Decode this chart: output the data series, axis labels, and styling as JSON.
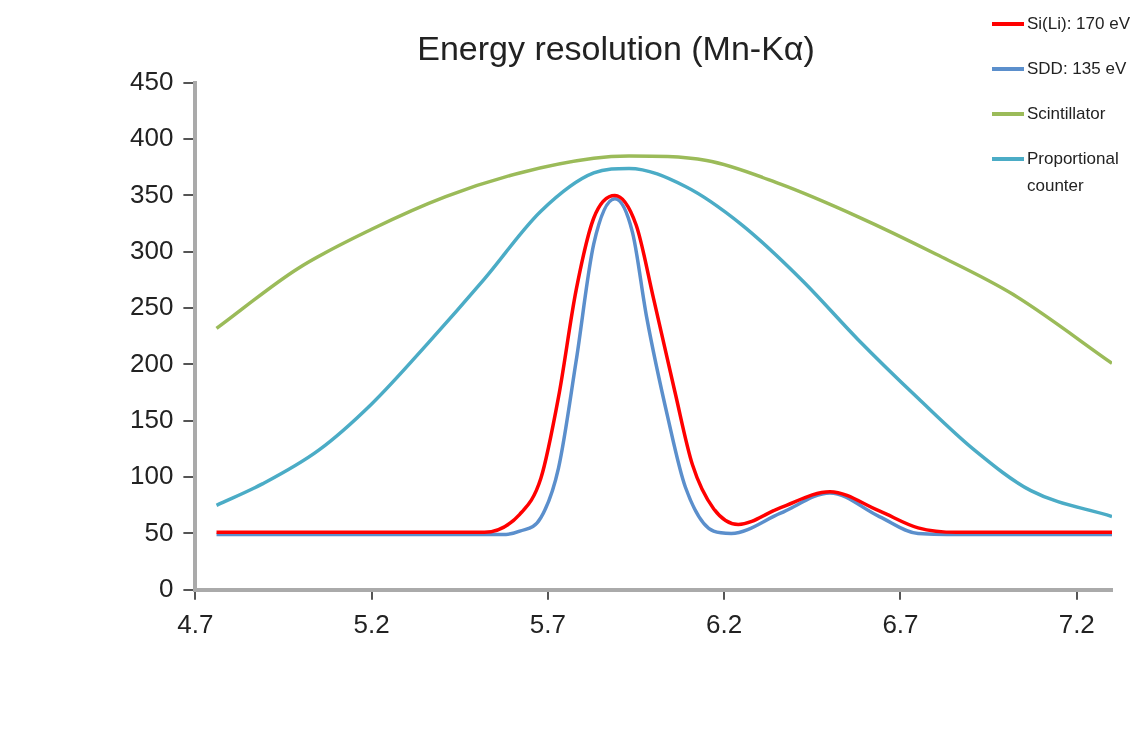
{
  "chart_data": {
    "type": "line",
    "title": "Energy resolution (Mn-Kα)",
    "xlim": [
      4.7,
      7.3
    ],
    "xticks": [
      4.7,
      5.2,
      5.7,
      6.2,
      6.7,
      7.2
    ],
    "ylim": [
      0,
      450
    ],
    "yticks": [
      0,
      50,
      100,
      150,
      200,
      250,
      300,
      350,
      400,
      450
    ],
    "grid": false,
    "legend": "top right",
    "marker": "none",
    "line_style": "solid",
    "series": [
      {
        "name": "Si(Li): 170 eV",
        "color": "#ff0000",
        "x": [
          4.76,
          5.2,
          5.52,
          5.62,
          5.68,
          5.73,
          5.78,
          5.83,
          5.89,
          5.95,
          6.0,
          6.06,
          6.11,
          6.17,
          6.24,
          6.36,
          6.5,
          6.64,
          6.75,
          6.86,
          7.0,
          7.3
        ],
        "values": [
          51,
          51,
          51,
          67,
          99,
          171,
          266,
          330,
          350,
          324,
          258,
          176,
          111,
          72,
          58,
          73,
          87,
          70,
          55,
          51,
          51,
          51
        ]
      },
      {
        "name": "SDD: 135 eV",
        "color": "#5b8fcc",
        "x": [
          4.76,
          5.2,
          5.57,
          5.62,
          5.68,
          5.73,
          5.78,
          5.83,
          5.89,
          5.94,
          5.98,
          6.04,
          6.09,
          6.17,
          6.22,
          6.36,
          6.5,
          6.64,
          6.75,
          6.9,
          7.3
        ],
        "values": [
          49,
          49,
          49,
          52,
          64,
          108,
          203,
          307,
          347,
          317,
          242,
          153,
          91,
          52,
          50,
          68,
          86,
          65,
          50,
          49,
          49
        ]
      },
      {
        "name": "Scintillator",
        "color": "#9bbb59",
        "x": [
          4.76,
          4.99,
          5.2,
          5.41,
          5.62,
          5.83,
          5.93,
          6.15,
          6.36,
          6.58,
          6.8,
          7.02,
          7.3
        ],
        "values": [
          232,
          285,
          320,
          349,
          370,
          383,
          385,
          381,
          360,
          331,
          298,
          262,
          201
        ]
      },
      {
        "name": "Proportional counter",
        "color": "#4bacc6",
        "x": [
          4.76,
          4.89,
          5.05,
          5.2,
          5.36,
          5.52,
          5.68,
          5.83,
          5.93,
          6.09,
          6.25,
          6.42,
          6.58,
          6.75,
          6.91,
          7.07,
          7.3
        ],
        "values": [
          75,
          94,
          124,
          165,
          219,
          276,
          336,
          370,
          374,
          358,
          324,
          275,
          222,
          170,
          124,
          88,
          65
        ]
      }
    ]
  }
}
